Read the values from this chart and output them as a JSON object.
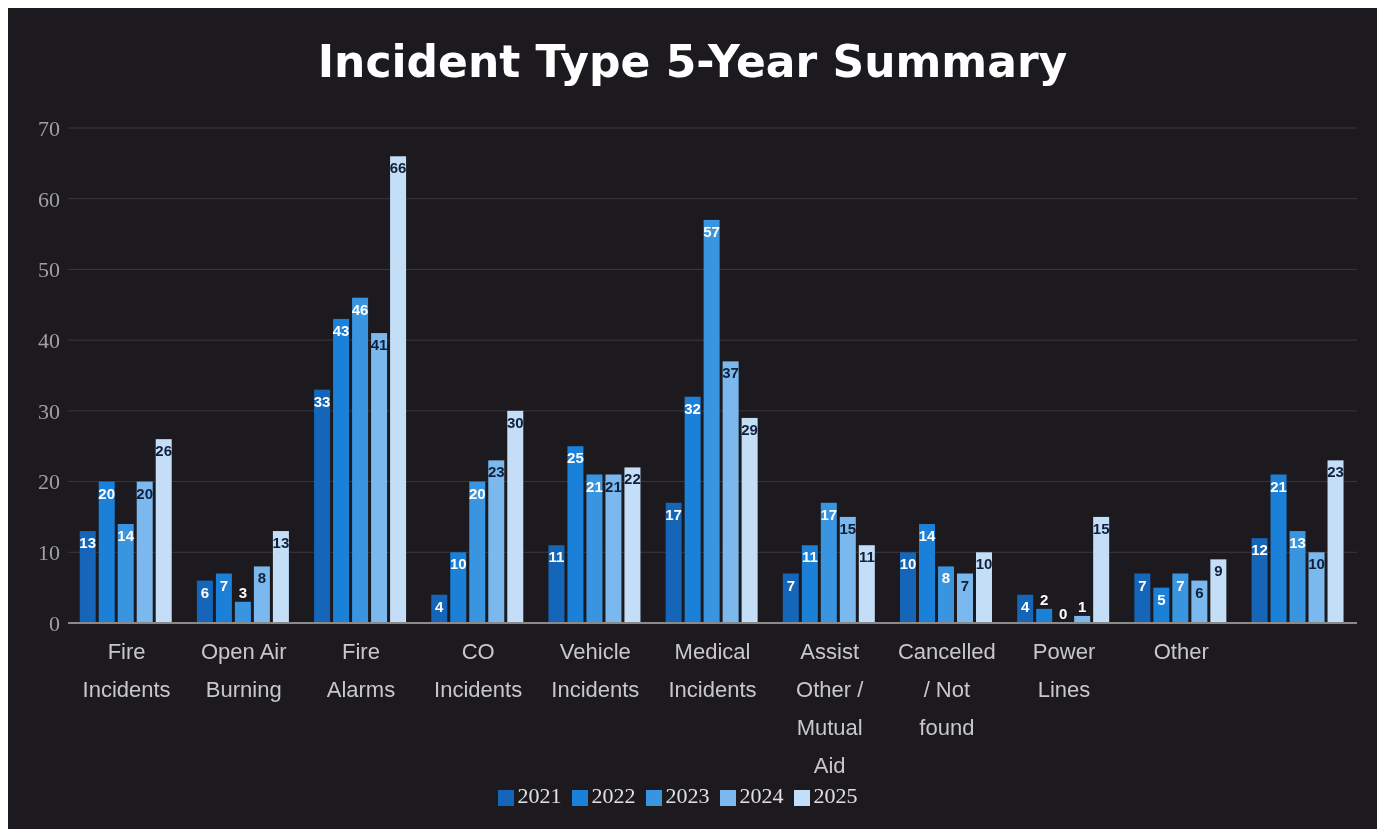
{
  "chart_data": {
    "type": "bar",
    "title": "Incident Type 5-Year Summary",
    "categories": [
      "Fire Incidents",
      "Open Air Burning",
      "Fire Alarms",
      "CO Incidents",
      "Vehicle Incidents",
      "Medical Incidents",
      "Assist Other / Mutual Aid",
      "Cancelled / Not found",
      "Power Lines",
      "Other",
      null
    ],
    "series": [
      {
        "name": "2021",
        "color": "#1565b8",
        "values": [
          13,
          6,
          33,
          4,
          11,
          17,
          7,
          10,
          4,
          7,
          12
        ]
      },
      {
        "name": "2022",
        "color": "#1a80d8",
        "values": [
          20,
          7,
          43,
          10,
          25,
          32,
          11,
          14,
          2,
          5,
          21
        ]
      },
      {
        "name": "2023",
        "color": "#3a95e0",
        "values": [
          14,
          3,
          46,
          20,
          21,
          57,
          17,
          8,
          0,
          7,
          13
        ]
      },
      {
        "name": "2024",
        "color": "#7ab8ee",
        "values": [
          20,
          8,
          41,
          23,
          21,
          37,
          15,
          7,
          1,
          6,
          10
        ]
      },
      {
        "name": "2025",
        "color": "#c5def8",
        "values": [
          26,
          13,
          66,
          30,
          22,
          29,
          11,
          10,
          15,
          9,
          23
        ]
      }
    ],
    "ylim": [
      0,
      70
    ],
    "yticks": [
      0,
      10,
      20,
      30,
      40,
      50,
      60,
      70
    ],
    "grid": "y",
    "legend": "bottom",
    "data_labels": true
  }
}
